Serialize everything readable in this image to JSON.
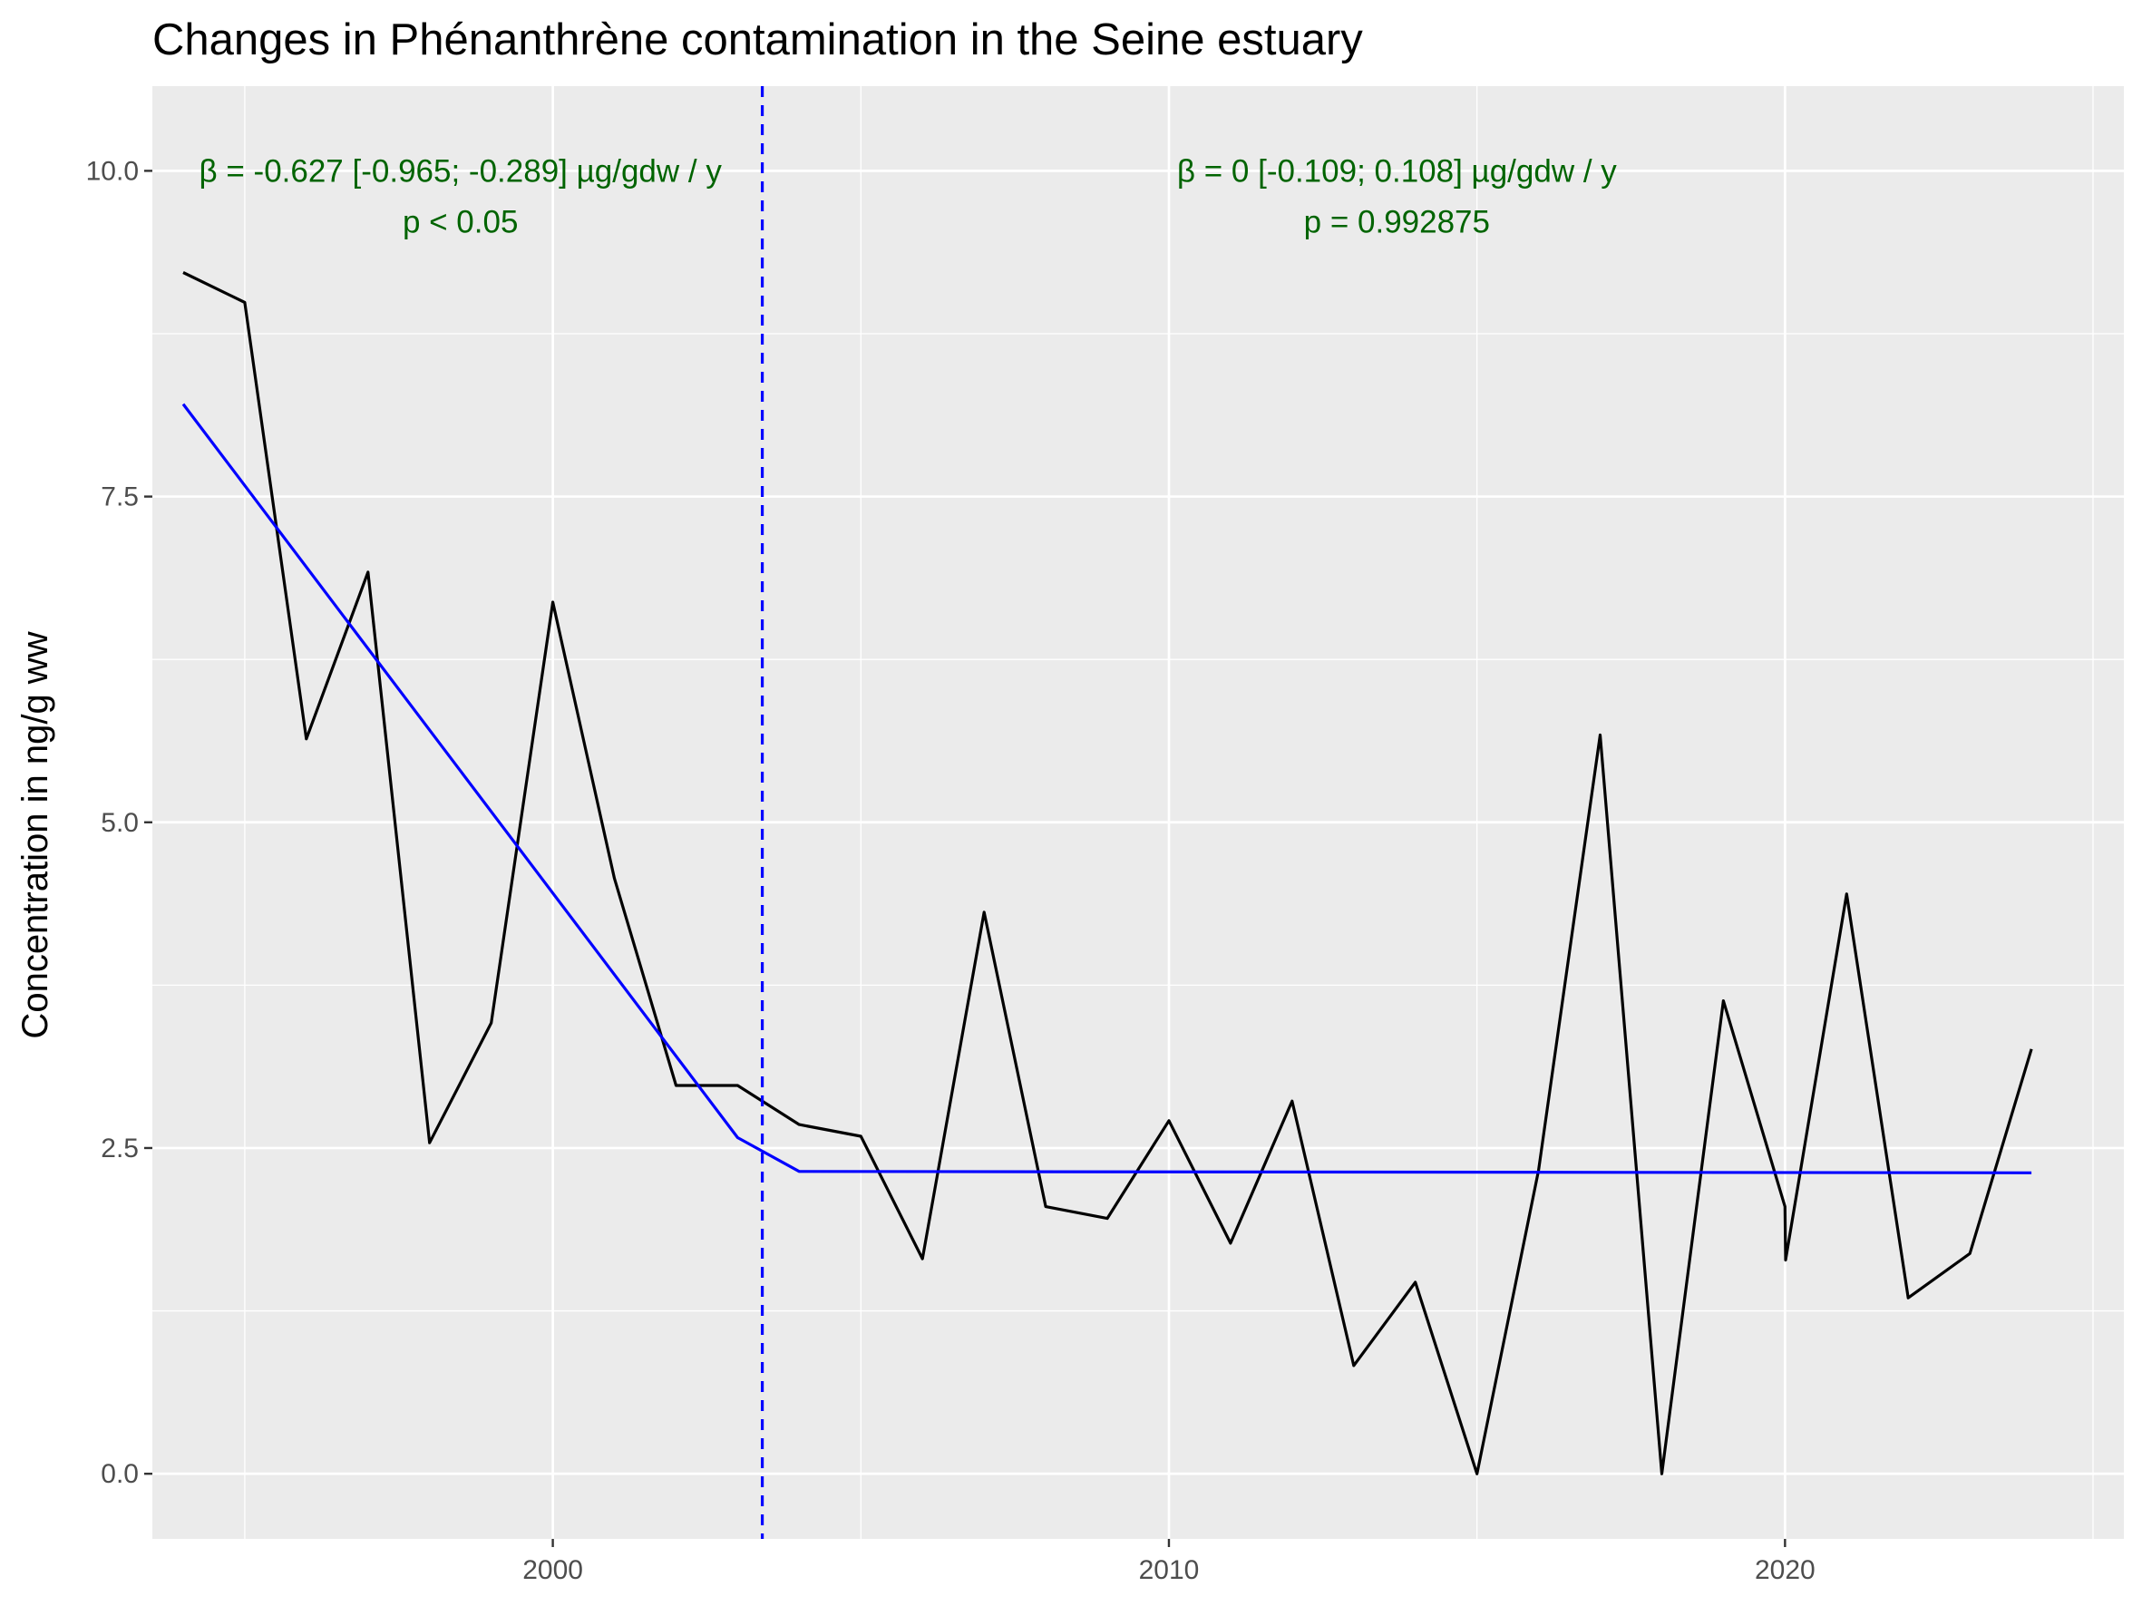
{
  "chart_data": {
    "type": "line",
    "title": "Changes in Phénanthrène contamination in the Seine estuary",
    "xlabel": "",
    "ylabel": "Concentration in ng/g ww",
    "xlim": [
      1993.5,
      2025.5
    ],
    "ylim": [
      -0.5,
      10.65
    ],
    "x_ticks": [
      2000,
      2010,
      2020
    ],
    "x_tick_labels": [
      "2000",
      "2010",
      "2020"
    ],
    "x_minor_ticks": [
      1995,
      2005,
      2015,
      2025
    ],
    "y_ticks": [
      0,
      2.5,
      5,
      7.5,
      10
    ],
    "y_tick_labels": [
      "0.0",
      "2.5",
      "5.0",
      "7.5",
      "10.0"
    ],
    "y_minor_ticks": [
      1.25,
      3.75,
      6.25,
      8.75
    ],
    "grid": true,
    "background": "#ebebeb",
    "series": [
      {
        "color": "#000000",
        "x": [
          1994,
          1995,
          1996,
          1997,
          1998,
          1999,
          2000,
          2001,
          2002,
          2003,
          2004,
          2005,
          2006,
          2007,
          2008,
          2009,
          2010,
          2011,
          2012,
          2013,
          2014,
          2015,
          2016,
          2017,
          2018,
          2019,
          2020,
          2020.01,
          2021,
          2022,
          2023,
          2024
        ],
        "y": [
          9.22,
          8.99,
          5.64,
          6.92,
          2.54,
          3.46,
          6.69,
          4.57,
          2.98,
          2.98,
          2.68,
          2.59,
          1.65,
          4.31,
          2.05,
          1.96,
          2.71,
          1.77,
          2.86,
          0.83,
          1.47,
          0.0,
          2.33,
          5.67,
          0.0,
          3.63,
          2.05,
          1.64,
          4.45,
          1.35,
          1.69,
          3.26
        ]
      },
      {
        "color": "#0000ff",
        "x": [
          1994,
          2003,
          2004,
          2024
        ],
        "y": [
          8.21,
          2.58,
          2.32,
          2.31
        ]
      }
    ],
    "breakpoint": {
      "x": 2003.4,
      "color": "#0000ff",
      "style": "dashed"
    },
    "annotations": [
      {
        "line1": "β = -0.627 [-0.965; -0.289] µg/gdw / y",
        "line2": "p < 0.05",
        "x": 1998.5,
        "y": 10.0,
        "color": "#006400"
      },
      {
        "line1": "β = 0 [-0.109; 0.108] µg/gdw / y",
        "line2": "p = 0.992875",
        "x": 2013.7,
        "y": 10.0,
        "color": "#006400"
      }
    ],
    "colors": {
      "panel": "#ebebeb",
      "grid": "#ffffff",
      "tick_text": "#4d4d4d",
      "tick_mark": "#333333"
    }
  }
}
